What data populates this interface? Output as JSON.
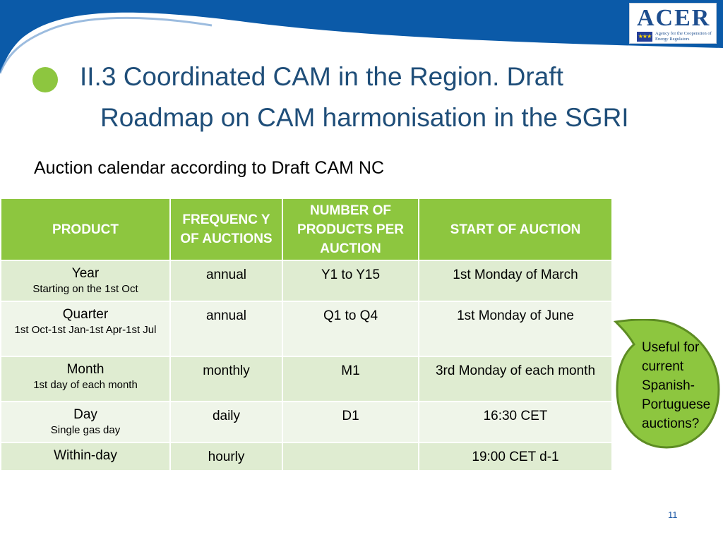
{
  "logo": {
    "wordmark": "ACER",
    "subtitle": "Agency for the Cooperation of Energy Regulators"
  },
  "slide": {
    "title_line1": "II.3 Coordinated CAM in the Region. Draft",
    "title_line2": "Roadmap on CAM harmonisation in the SGRI",
    "subtitle": "Auction calendar according to Draft CAM NC",
    "page_number": "11"
  },
  "table": {
    "headers": [
      "PRODUCT",
      "FREQUENC Y OF AUCTIONS",
      "NUMBER OF PRODUCTS PER AUCTION",
      "START OF AUCTION"
    ],
    "rows": [
      {
        "product": "Year",
        "product_detail": "Starting on the 1st Oct",
        "frequency": "annual",
        "products": "Y1 to Y15",
        "start": "1st Monday of March"
      },
      {
        "product": "Quarter",
        "product_detail": "1st Oct-1st Jan-1st Apr-1st Jul",
        "frequency": "annual",
        "products": "Q1 to Q4",
        "start": "1st Monday of June"
      },
      {
        "product": "Month",
        "product_detail": "1st day of each month",
        "frequency": "monthly",
        "products": "M1",
        "start": "3rd Monday of each month"
      },
      {
        "product": "Day",
        "product_detail": "Single gas day",
        "frequency": "daily",
        "products": "D1",
        "start": "16:30 CET"
      },
      {
        "product": "Within-day",
        "product_detail": "",
        "frequency": "hourly",
        "products": "",
        "start": "19:00 CET d-1"
      }
    ]
  },
  "callout": {
    "text": "Useful for current Spanish-Portuguese auctions?"
  },
  "colors": {
    "header_blue": "#0b5aa8",
    "accent_green": "#8dc63f",
    "title_blue": "#1f4e79",
    "row_dark": "#dfecd1",
    "row_light": "#eff5e9"
  }
}
